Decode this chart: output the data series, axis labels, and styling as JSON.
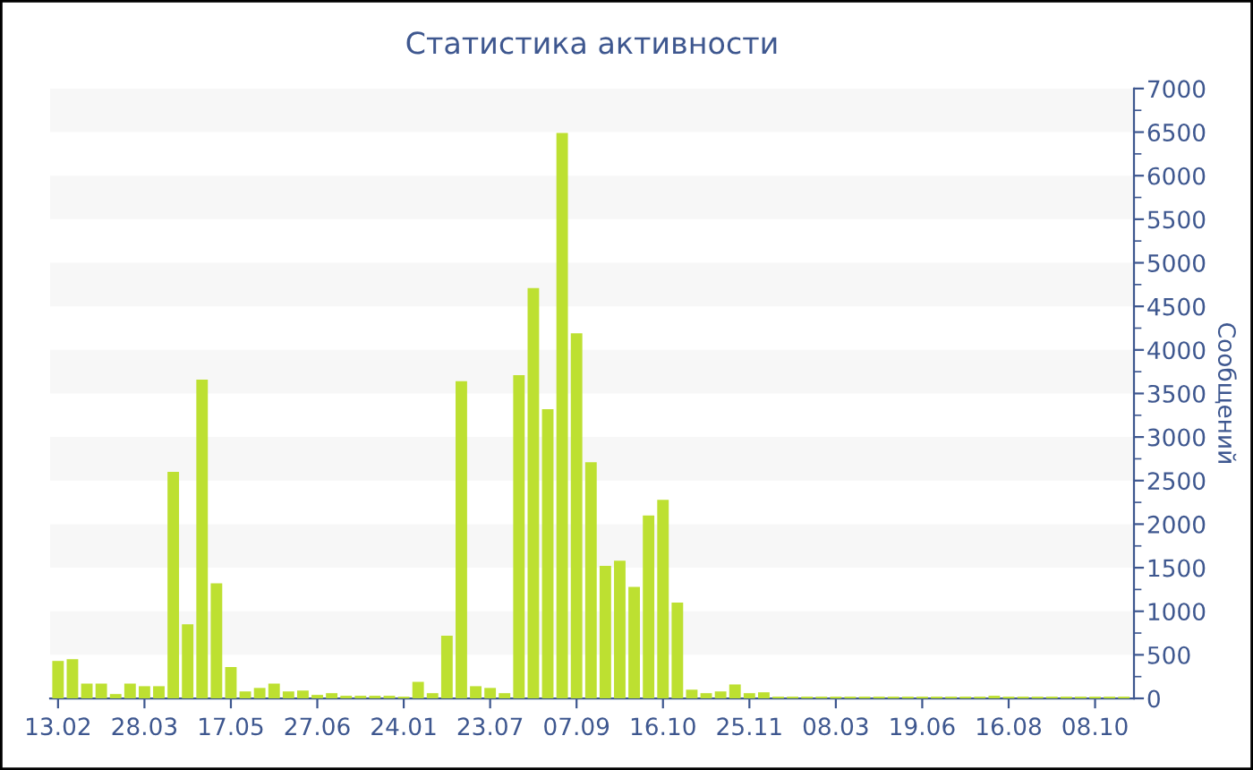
{
  "chart_data": {
    "type": "bar",
    "title": "Статистика активности",
    "ylabel": "Сообщений",
    "categories": [
      "13.02",
      null,
      null,
      null,
      null,
      null,
      "28.03",
      null,
      null,
      null,
      null,
      null,
      "17.05",
      null,
      null,
      null,
      null,
      null,
      "27.06",
      null,
      null,
      null,
      null,
      null,
      "24.01",
      null,
      null,
      null,
      null,
      null,
      "23.07",
      null,
      null,
      null,
      null,
      null,
      "07.09",
      null,
      null,
      null,
      null,
      null,
      "16.10",
      null,
      null,
      null,
      null,
      null,
      "25.11",
      null,
      null,
      null,
      null,
      null,
      "08.03",
      null,
      null,
      null,
      null,
      null,
      "19.06",
      null,
      null,
      null,
      null,
      null,
      "16.08",
      null,
      null,
      null,
      null,
      null,
      "08.10",
      null,
      null
    ],
    "values": [
      430,
      450,
      170,
      170,
      50,
      170,
      140,
      140,
      2600,
      850,
      3660,
      1320,
      360,
      80,
      120,
      170,
      80,
      90,
      40,
      60,
      30,
      30,
      30,
      30,
      20,
      190,
      60,
      720,
      3640,
      140,
      120,
      60,
      3710,
      4710,
      3320,
      6490,
      4190,
      2710,
      1520,
      1580,
      1280,
      2100,
      2280,
      1100,
      100,
      60,
      80,
      160,
      60,
      70,
      20,
      20,
      20,
      20,
      20,
      20,
      20,
      20,
      20,
      20,
      20,
      20,
      20,
      20,
      20,
      30,
      20,
      20,
      20,
      20,
      20,
      20,
      20,
      20,
      20
    ],
    "color": "#bde031",
    "ylim": [
      0,
      7000
    ],
    "yticks": [
      0,
      500,
      1000,
      1500,
      2000,
      2500,
      3000,
      3500,
      4000,
      4500,
      5000,
      5500,
      6000,
      6500,
      7000
    ],
    "bands": [
      {
        "axis": "y",
        "from": 500,
        "to": 1000,
        "color": "#f7f7f7"
      },
      {
        "axis": "y",
        "from": 1500,
        "to": 2000,
        "color": "#f7f7f7"
      },
      {
        "axis": "y",
        "from": 2500,
        "to": 3000,
        "color": "#f7f7f7"
      },
      {
        "axis": "y",
        "from": 3500,
        "to": 4000,
        "color": "#f7f7f7"
      },
      {
        "axis": "y",
        "from": 4500,
        "to": 5000,
        "color": "#f7f7f7"
      },
      {
        "axis": "y",
        "from": 5500,
        "to": 6000,
        "color": "#f7f7f7"
      },
      {
        "axis": "y",
        "from": 6500,
        "to": 7000,
        "color": "#f7f7f7"
      }
    ]
  }
}
